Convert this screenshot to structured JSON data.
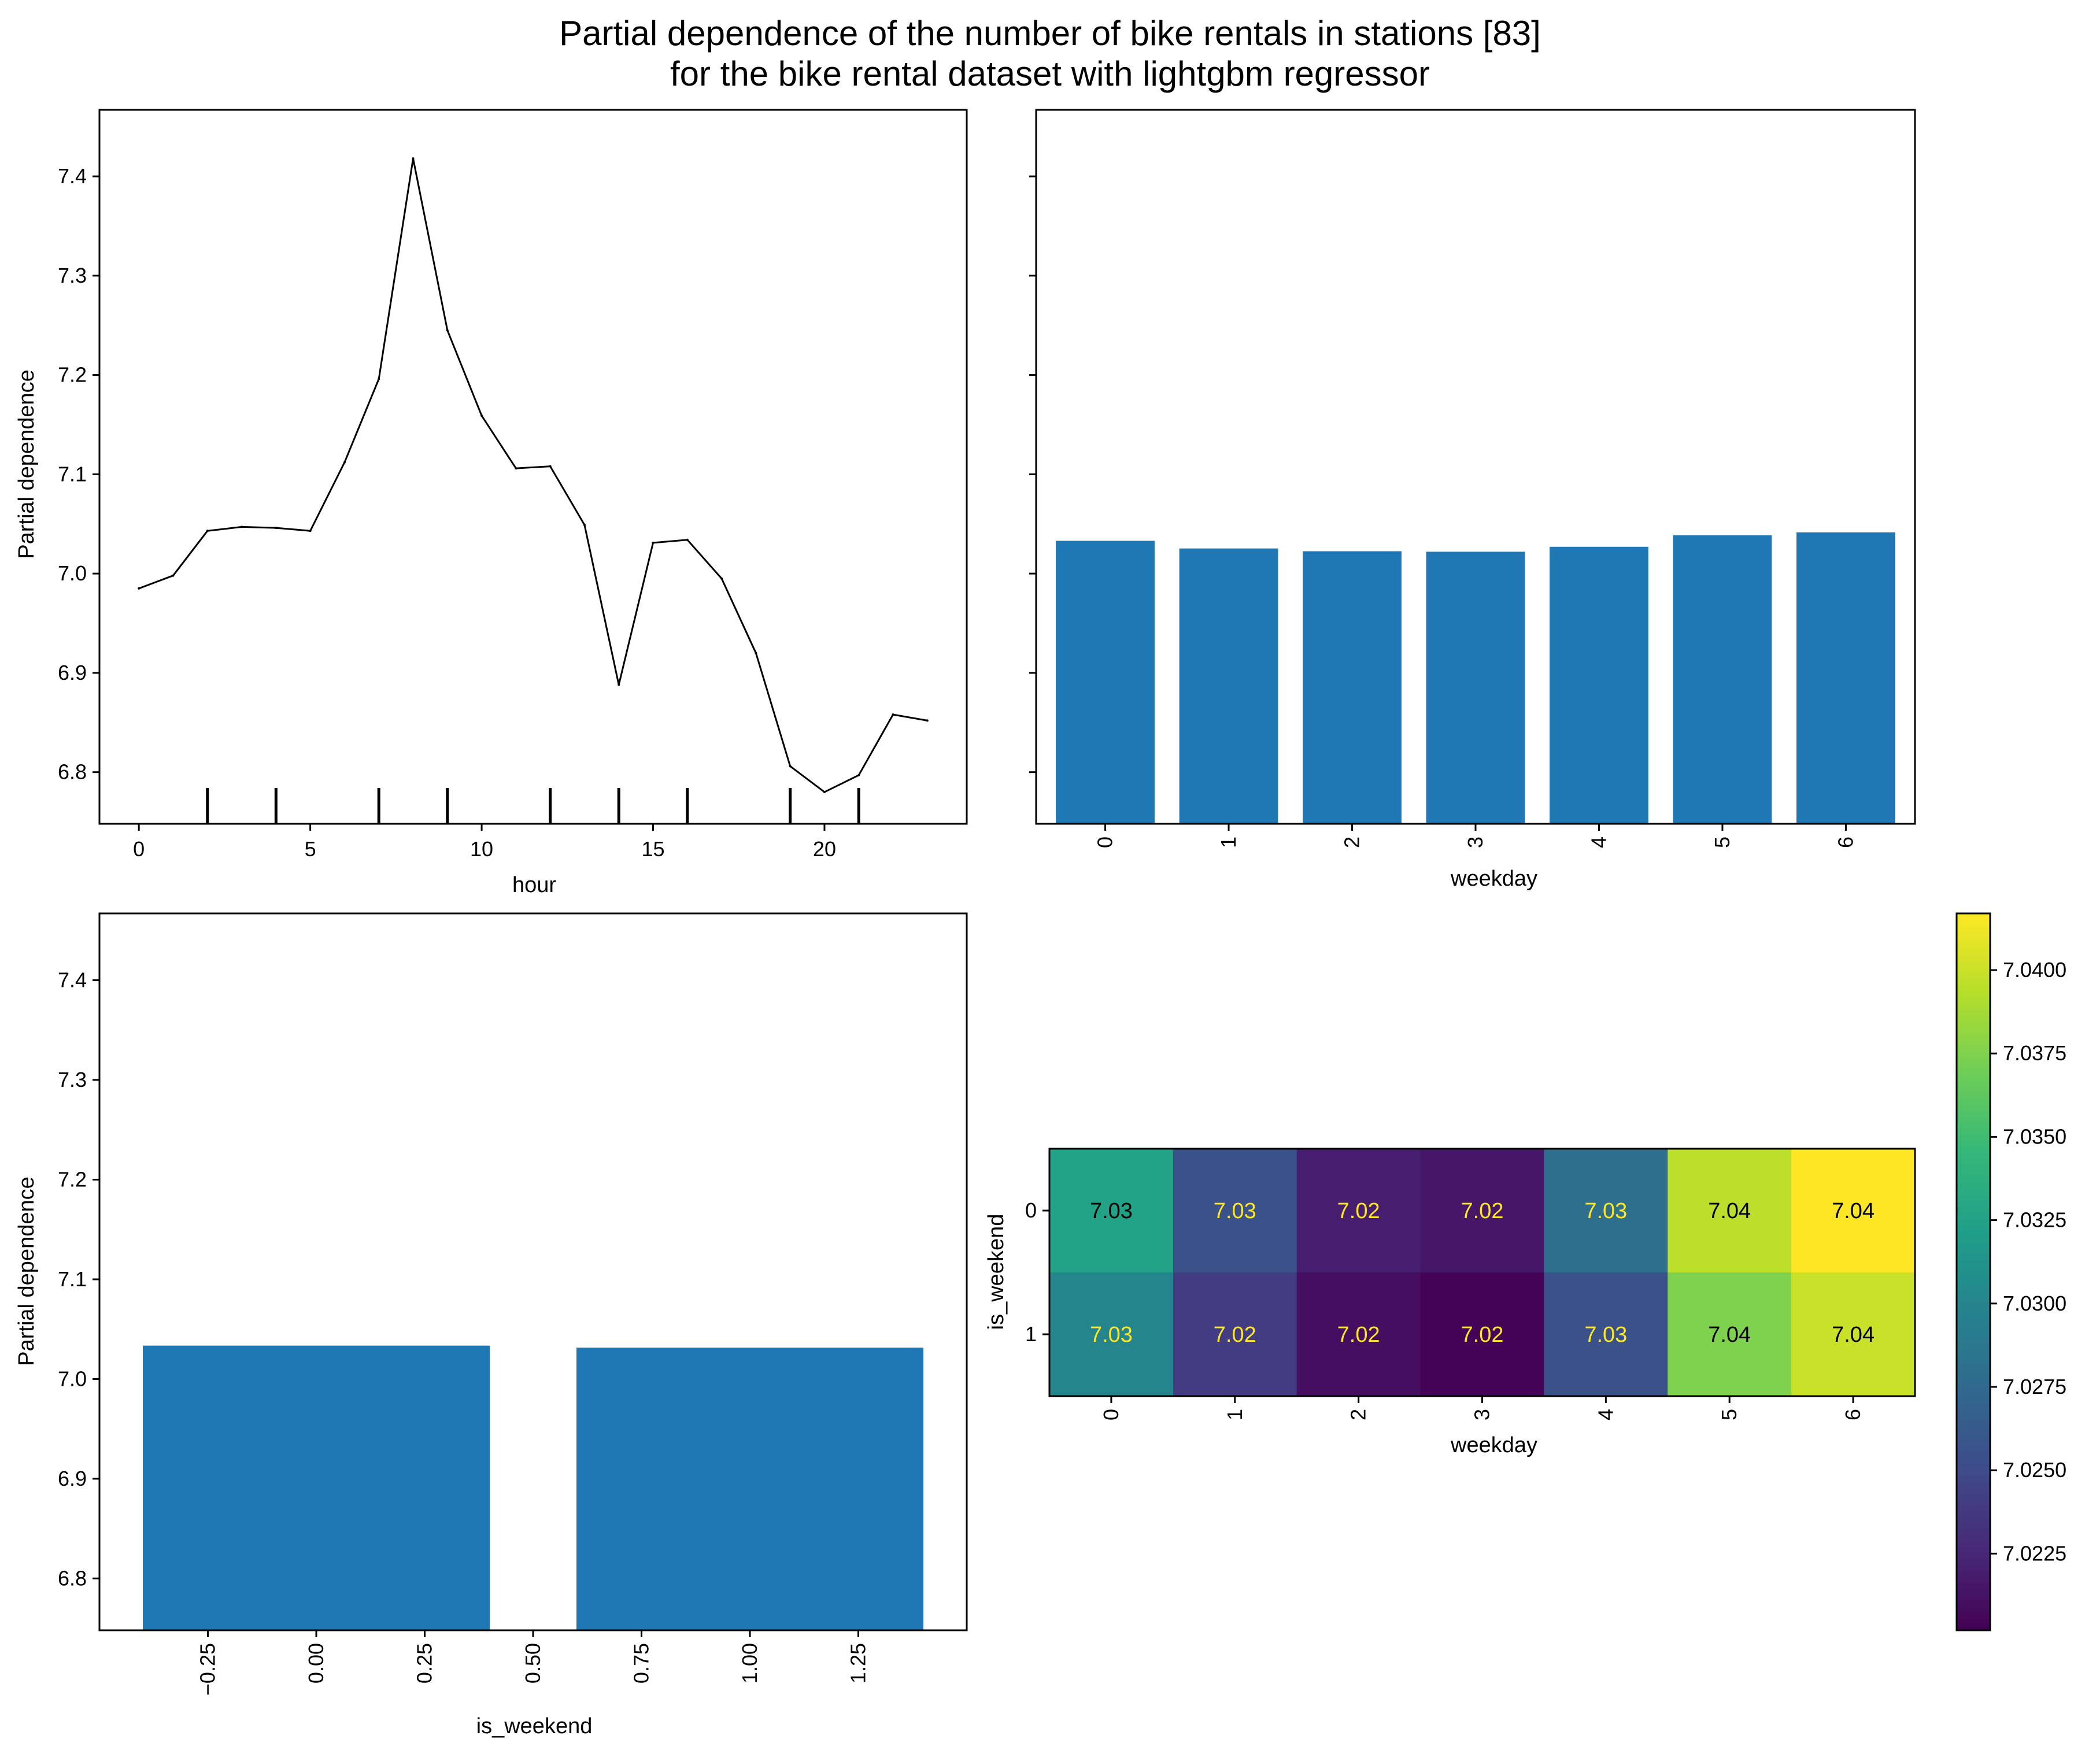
{
  "figure": {
    "title_lines": [
      "Partial dependence of the number of bike rentals in stations [83]",
      "for the bike rental dataset with lightgbm regressor"
    ]
  },
  "colors": {
    "line": "#000000",
    "bar": "#1f77b4",
    "axis": "#000000"
  },
  "chart_data": [
    {
      "id": "hour",
      "type": "line",
      "title": "",
      "xlabel": "hour",
      "ylabel": "Partial dependence",
      "x": [
        0,
        1,
        2,
        3,
        4,
        5,
        6,
        7,
        8,
        9,
        10,
        11,
        12,
        13,
        14,
        15,
        16,
        17,
        18,
        19,
        20,
        21,
        22,
        23
      ],
      "values": [
        6.985,
        6.998,
        7.043,
        7.047,
        7.046,
        7.043,
        7.112,
        7.196,
        7.418,
        7.245,
        7.159,
        7.106,
        7.108,
        7.049,
        6.888,
        7.031,
        7.034,
        6.995,
        6.92,
        6.806,
        6.78,
        6.797,
        6.858,
        6.852
      ],
      "xlim": [
        -1.15,
        24.15
      ],
      "ylim": [
        6.748,
        7.467
      ],
      "xticks": [
        0,
        5,
        10,
        15,
        20
      ],
      "xtick_labels": [
        "0",
        "5",
        "10",
        "15",
        "20"
      ],
      "yticks": [
        6.8,
        6.9,
        7.0,
        7.1,
        7.2,
        7.3,
        7.4
      ],
      "ytick_labels": [
        "6.8",
        "6.9",
        "7.0",
        "7.1",
        "7.2",
        "7.3",
        "7.4"
      ],
      "deciles": [
        2,
        4,
        7,
        9,
        12,
        14,
        16,
        19,
        21
      ]
    },
    {
      "id": "weekday",
      "type": "bar",
      "title": "",
      "xlabel": "weekday",
      "ylabel": "",
      "categories": [
        "0",
        "1",
        "2",
        "3",
        "4",
        "5",
        "6"
      ],
      "values": [
        7.033,
        7.0253,
        7.0225,
        7.022,
        7.027,
        7.0385,
        7.0415
      ],
      "ylim": [
        6.748,
        7.467
      ],
      "yticks": [
        6.8,
        6.9,
        7.0,
        7.1,
        7.2,
        7.3,
        7.4
      ]
    },
    {
      "id": "is_weekend",
      "type": "bar",
      "title": "",
      "xlabel": "is_weekend",
      "ylabel": "Partial dependence",
      "categories": [
        0,
        1
      ],
      "values": [
        7.0335,
        7.0315
      ],
      "bar_width": 0.8,
      "xlim": [
        -0.5,
        1.5
      ],
      "ylim": [
        6.748,
        7.467
      ],
      "xticks": [
        -0.25,
        0.0,
        0.25,
        0.5,
        0.75,
        1.0,
        1.25
      ],
      "xtick_labels": [
        "−0.25",
        "0.00",
        "0.25",
        "0.50",
        "0.75",
        "1.00",
        "1.25"
      ],
      "yticks": [
        6.8,
        6.9,
        7.0,
        7.1,
        7.2,
        7.3,
        7.4
      ],
      "ytick_labels": [
        "6.8",
        "6.9",
        "7.0",
        "7.1",
        "7.2",
        "7.3",
        "7.4"
      ]
    },
    {
      "id": "weekday_is_weekend",
      "type": "heatmap",
      "title": "",
      "xlabel": "weekday",
      "ylabel": "is_weekend",
      "x_categories": [
        "0",
        "1",
        "2",
        "3",
        "4",
        "5",
        "6"
      ],
      "y_categories": [
        "0",
        "1"
      ],
      "values": [
        [
          7.0325,
          7.0255,
          7.022,
          7.0215,
          7.028,
          7.0395,
          7.0417
        ],
        [
          7.03,
          7.024,
          7.021,
          7.0203,
          7.0255,
          7.0375,
          7.04
        ]
      ],
      "cell_labels": [
        [
          "7.03",
          "7.03",
          "7.02",
          "7.02",
          "7.03",
          "7.04",
          "7.04"
        ],
        [
          "7.03",
          "7.02",
          "7.02",
          "7.02",
          "7.03",
          "7.04",
          "7.04"
        ]
      ],
      "colormap": "viridis",
      "vmin": 7.0202,
      "vmax": 7.0417,
      "colorbar_ticks": [
        7.0225,
        7.025,
        7.0275,
        7.03,
        7.0325,
        7.035,
        7.0375,
        7.04
      ],
      "colorbar_tick_labels": [
        "7.0225",
        "7.0250",
        "7.0275",
        "7.0300",
        "7.0325",
        "7.0350",
        "7.0375",
        "7.0400"
      ]
    }
  ]
}
